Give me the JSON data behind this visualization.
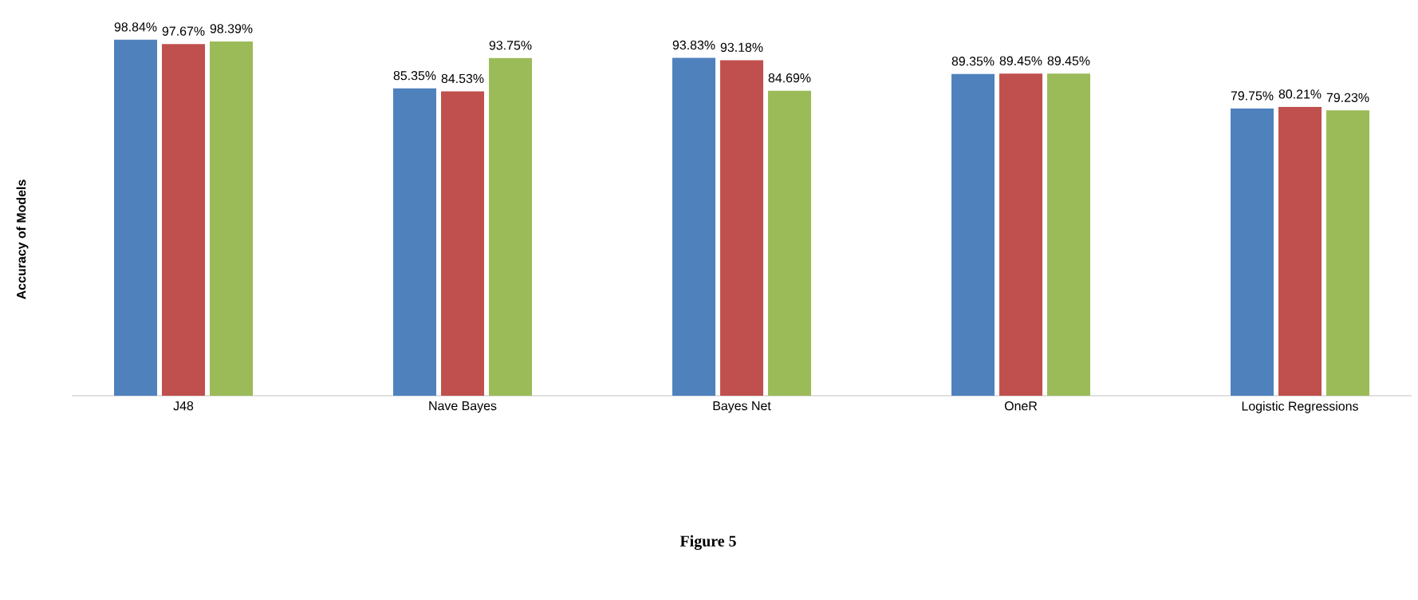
{
  "chart_data": {
    "type": "bar",
    "ylabel": "Accuracy  of Models",
    "categories": [
      "J48",
      "Nave Bayes",
      "Bayes Net",
      "OneR",
      "Logistic Regressions"
    ],
    "series": [
      {
        "color": "#4f81bd",
        "values": [
          98.84,
          85.35,
          93.83,
          89.35,
          79.75
        ],
        "value_labels": [
          "98.84%",
          "85.35%",
          "93.83%",
          "89.35%",
          "79.75%"
        ]
      },
      {
        "color": "#c0504d",
        "values": [
          97.67,
          84.53,
          93.18,
          89.45,
          80.21
        ],
        "value_labels": [
          "97.67%",
          "84.53%",
          "93.18%",
          "89.45%",
          "80.21%"
        ]
      },
      {
        "color": "#9bbb59",
        "values": [
          98.39,
          93.75,
          84.69,
          89.45,
          79.23
        ],
        "value_labels": [
          "98.39%",
          "93.75%",
          "84.69%",
          "89.45%",
          "79.23%"
        ]
      }
    ],
    "annotations": [
      "Figure 5"
    ]
  }
}
